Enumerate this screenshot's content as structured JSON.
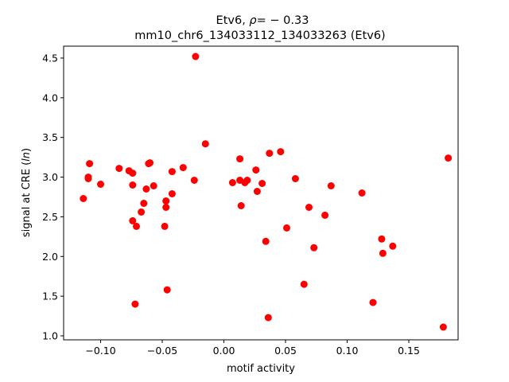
{
  "chart_data": {
    "type": "scatter",
    "title_line1_prefix": "Etv6, ",
    "title_rho_symbol": "ρ",
    "title_rho_value": "= − 0.33",
    "title_line2": "mm10_chr6_134033112_134033263 (Etv6)",
    "xlabel": "motif activity",
    "ylabel_prefix": "signal at CRE (",
    "ylabel_italic": "ln",
    "ylabel_suffix": ")",
    "xlim": [
      -0.13,
      0.19
    ],
    "ylim": [
      0.95,
      4.65
    ],
    "xticks": [
      -0.1,
      -0.05,
      0.0,
      0.05,
      0.1,
      0.15
    ],
    "xtick_labels": [
      "−0.10",
      "−0.05",
      "0.00",
      "0.05",
      "0.10",
      "0.15"
    ],
    "yticks": [
      1.0,
      1.5,
      2.0,
      2.5,
      3.0,
      3.5,
      4.0,
      4.5
    ],
    "ytick_labels": [
      "1.0",
      "1.5",
      "2.0",
      "2.5",
      "3.0",
      "3.5",
      "4.0",
      "4.5"
    ],
    "grid": false,
    "marker_color": "#ff0000",
    "points": [
      {
        "x": -0.114,
        "y": 2.73
      },
      {
        "x": -0.11,
        "y": 3.0
      },
      {
        "x": -0.11,
        "y": 2.98
      },
      {
        "x": -0.109,
        "y": 3.17
      },
      {
        "x": -0.1,
        "y": 2.91
      },
      {
        "x": -0.085,
        "y": 3.11
      },
      {
        "x": -0.077,
        "y": 3.08
      },
      {
        "x": -0.074,
        "y": 3.05
      },
      {
        "x": -0.074,
        "y": 2.9
      },
      {
        "x": -0.074,
        "y": 2.45
      },
      {
        "x": -0.071,
        "y": 2.38
      },
      {
        "x": -0.072,
        "y": 1.4
      },
      {
        "x": -0.067,
        "y": 2.56
      },
      {
        "x": -0.065,
        "y": 2.67
      },
      {
        "x": -0.063,
        "y": 2.85
      },
      {
        "x": -0.061,
        "y": 3.17
      },
      {
        "x": -0.06,
        "y": 3.18
      },
      {
        "x": -0.057,
        "y": 2.89
      },
      {
        "x": -0.048,
        "y": 2.38
      },
      {
        "x": -0.047,
        "y": 2.7
      },
      {
        "x": -0.047,
        "y": 2.62
      },
      {
        "x": -0.046,
        "y": 1.58
      },
      {
        "x": -0.042,
        "y": 3.07
      },
      {
        "x": -0.042,
        "y": 2.79
      },
      {
        "x": -0.033,
        "y": 3.12
      },
      {
        "x": -0.024,
        "y": 2.96
      },
      {
        "x": -0.023,
        "y": 4.52
      },
      {
        "x": -0.015,
        "y": 3.42
      },
      {
        "x": 0.007,
        "y": 2.93
      },
      {
        "x": 0.013,
        "y": 3.23
      },
      {
        "x": 0.013,
        "y": 2.96
      },
      {
        "x": 0.014,
        "y": 2.64
      },
      {
        "x": 0.017,
        "y": 2.93
      },
      {
        "x": 0.019,
        "y": 2.96
      },
      {
        "x": 0.026,
        "y": 3.09
      },
      {
        "x": 0.027,
        "y": 2.82
      },
      {
        "x": 0.031,
        "y": 2.92
      },
      {
        "x": 0.034,
        "y": 2.19
      },
      {
        "x": 0.036,
        "y": 1.23
      },
      {
        "x": 0.037,
        "y": 3.3
      },
      {
        "x": 0.046,
        "y": 3.32
      },
      {
        "x": 0.051,
        "y": 2.36
      },
      {
        "x": 0.058,
        "y": 2.98
      },
      {
        "x": 0.065,
        "y": 1.65
      },
      {
        "x": 0.069,
        "y": 2.62
      },
      {
        "x": 0.073,
        "y": 2.11
      },
      {
        "x": 0.082,
        "y": 2.52
      },
      {
        "x": 0.087,
        "y": 2.89
      },
      {
        "x": 0.112,
        "y": 2.8
      },
      {
        "x": 0.121,
        "y": 1.42
      },
      {
        "x": 0.128,
        "y": 2.22
      },
      {
        "x": 0.129,
        "y": 2.04
      },
      {
        "x": 0.137,
        "y": 2.13
      },
      {
        "x": 0.178,
        "y": 1.11
      },
      {
        "x": 0.182,
        "y": 3.24
      }
    ]
  }
}
